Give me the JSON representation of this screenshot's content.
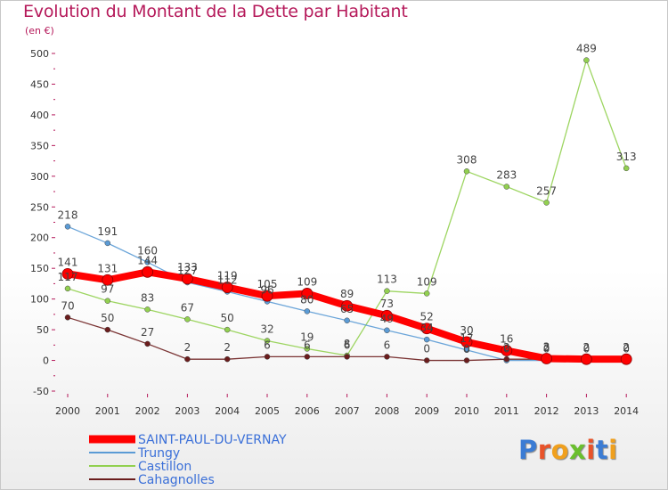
{
  "page": {
    "title": "Evolution du Montant de la Dette par Habitant",
    "subtitle": "(en €)",
    "logo": "Proxiti"
  },
  "colors": {
    "title": "#b5195a",
    "SAINT-PAUL-DU-VERNAY": "#ff0000",
    "Trungy": "#5b9bd5",
    "Castillon": "#92d050",
    "Cahagnolles": "#6b1d1d",
    "logo": [
      "#3b7cd4",
      "#e8532a",
      "#f0a01e",
      "#6abf2e",
      "#e8532a",
      "#3b7cd4",
      "#f0a01e"
    ]
  },
  "chart_data": {
    "type": "line",
    "title": "Evolution du Montant de la Dette par Habitant",
    "subtitle": "(en €)",
    "xlabel": "",
    "ylabel": "",
    "x": [
      "2000",
      "2001",
      "2002",
      "2003",
      "2004",
      "2005",
      "2006",
      "2007",
      "2008",
      "2009",
      "2010",
      "2011",
      "2012",
      "2013",
      "2014"
    ],
    "ylim": [
      -50,
      500
    ],
    "yticks": [
      "-50",
      "0",
      "50",
      "100",
      "150",
      "200",
      "250",
      "300",
      "350",
      "400",
      "450",
      "500"
    ],
    "grid": false,
    "legend": "bottom-left",
    "series": [
      {
        "name": "SAINT-PAUL-DU-VERNAY",
        "values": [
          141,
          131,
          144,
          133,
          119,
          105,
          109,
          89,
          73,
          52,
          30,
          16,
          3,
          2,
          2
        ],
        "labels": [
          "141",
          "131",
          "144",
          "133",
          "119",
          "105",
          "109",
          "89",
          "73",
          "52",
          "30",
          "16",
          "3",
          "2",
          "2"
        ]
      },
      {
        "name": "Trungy",
        "values": [
          218,
          191,
          160,
          127,
          112,
          96,
          80,
          65,
          49,
          34,
          17,
          0,
          0,
          0,
          0
        ],
        "labels": [
          "218",
          "191",
          "160",
          "127",
          "112",
          "96",
          "80",
          "65",
          "49",
          "34",
          "17",
          "0",
          "0",
          "0",
          "0"
        ]
      },
      {
        "name": "Castillon",
        "values": [
          117,
          97,
          83,
          67,
          50,
          32,
          19,
          8,
          113,
          109,
          308,
          283,
          257,
          489,
          313
        ],
        "labels": [
          "117",
          "97",
          "83",
          "67",
          "50",
          "32",
          "19",
          "8",
          "113",
          "109",
          "308",
          "283",
          "257",
          "489",
          "313"
        ]
      },
      {
        "name": "Cahagnolles",
        "values": [
          70,
          50,
          27,
          2,
          2,
          6,
          6,
          6,
          6,
          0,
          0,
          2,
          2,
          2,
          2
        ],
        "labels": [
          "70",
          "50",
          "27",
          "2",
          "2",
          "6",
          "6",
          "6",
          "6",
          "0",
          "0",
          "2",
          "2",
          "2",
          "2"
        ]
      }
    ]
  }
}
